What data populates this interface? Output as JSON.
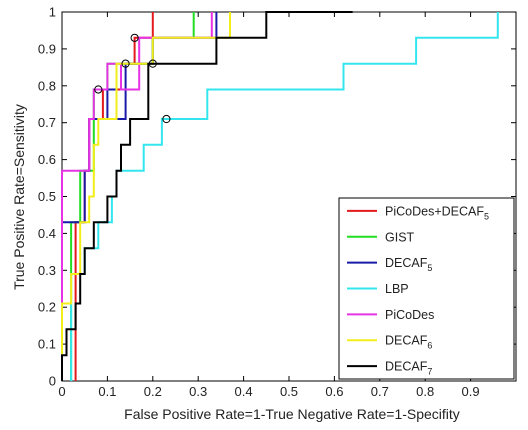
{
  "chart_data": {
    "type": "line",
    "title": "",
    "xlabel": "False Positive Rate=1-True Negative Rate=1-Specifity",
    "ylabel": "True Positive Rate=Sensitivity",
    "xlim": [
      0,
      1
    ],
    "ylim": [
      0,
      1
    ],
    "x_ticks": [
      "0",
      "0.1",
      "0.2",
      "0.3",
      "0.4",
      "0.5",
      "0.6",
      "0.7",
      "0.8",
      "0.9"
    ],
    "y_ticks": [
      "0",
      "0.1",
      "0.2",
      "0.3",
      "0.4",
      "0.5",
      "0.6",
      "0.7",
      "0.8",
      "0.9",
      "1"
    ],
    "x_tick_values": [
      0,
      0.1,
      0.2,
      0.3,
      0.4,
      0.5,
      0.6,
      0.7,
      0.8,
      0.9
    ],
    "y_tick_values": [
      0,
      0.1,
      0.2,
      0.3,
      0.4,
      0.5,
      0.6,
      0.7,
      0.8,
      0.9,
      1
    ],
    "grid": false,
    "legend_position": "bottom-right",
    "series": [
      {
        "name": "PiCoDes+DECAF",
        "subscript": "5",
        "color": "#e31a1c",
        "points": [
          [
            0.03,
            0
          ],
          [
            0.03,
            0.43
          ],
          [
            0.05,
            0.43
          ],
          [
            0.05,
            0.57
          ],
          [
            0.06,
            0.57
          ],
          [
            0.06,
            0.71
          ],
          [
            0.09,
            0.71
          ],
          [
            0.09,
            0.79
          ],
          [
            0.13,
            0.79
          ],
          [
            0.13,
            0.86
          ],
          [
            0.16,
            0.86
          ],
          [
            0.16,
            0.93
          ],
          [
            0.2,
            0.93
          ],
          [
            0.2,
            1
          ]
        ],
        "markers": [
          [
            0.16,
            0.93
          ]
        ]
      },
      {
        "name": "GIST",
        "subscript": "",
        "color": "#22dd22",
        "points": [
          [
            0.02,
            0
          ],
          [
            0.02,
            0.43
          ],
          [
            0.04,
            0.43
          ],
          [
            0.04,
            0.57
          ],
          [
            0.07,
            0.57
          ],
          [
            0.07,
            0.79
          ],
          [
            0.1,
            0.79
          ],
          [
            0.1,
            0.86
          ],
          [
            0.2,
            0.86
          ],
          [
            0.2,
            0.93
          ],
          [
            0.29,
            0.93
          ],
          [
            0.29,
            1
          ]
        ]
      },
      {
        "name": "DECAF",
        "subscript": "5",
        "color": "#1a1aa8",
        "points": [
          [
            0,
            0
          ],
          [
            0,
            0.43
          ],
          [
            0.05,
            0.43
          ],
          [
            0.05,
            0.57
          ],
          [
            0.06,
            0.57
          ],
          [
            0.06,
            0.71
          ],
          [
            0.1,
            0.71
          ],
          [
            0.1,
            0.79
          ],
          [
            0.12,
            0.79
          ],
          [
            0.12,
            0.71
          ],
          [
            0.14,
            0.71
          ],
          [
            0.14,
            0.86
          ],
          [
            0.2,
            0.86
          ],
          [
            0.2,
            0.93
          ],
          [
            0.34,
            0.93
          ],
          [
            0.34,
            1
          ]
        ],
        "markers": [
          [
            0.14,
            0.86
          ]
        ]
      },
      {
        "name": "LBP",
        "subscript": "",
        "color": "#33e6ee",
        "points": [
          [
            0.02,
            0
          ],
          [
            0.02,
            0.29
          ],
          [
            0.05,
            0.29
          ],
          [
            0.05,
            0.36
          ],
          [
            0.08,
            0.36
          ],
          [
            0.08,
            0.43
          ],
          [
            0.11,
            0.43
          ],
          [
            0.11,
            0.5
          ],
          [
            0.12,
            0.5
          ],
          [
            0.12,
            0.57
          ],
          [
            0.18,
            0.57
          ],
          [
            0.18,
            0.64
          ],
          [
            0.22,
            0.64
          ],
          [
            0.22,
            0.71
          ],
          [
            0.32,
            0.71
          ],
          [
            0.32,
            0.79
          ],
          [
            0.62,
            0.79
          ],
          [
            0.62,
            0.86
          ],
          [
            0.78,
            0.86
          ],
          [
            0.78,
            0.93
          ],
          [
            0.96,
            0.93
          ],
          [
            0.96,
            1
          ]
        ],
        "markers": [
          [
            0.23,
            0.71
          ]
        ]
      },
      {
        "name": "PiCoDes",
        "subscript": "",
        "color": "#e633e6",
        "points": [
          [
            0,
            0
          ],
          [
            0,
            0.57
          ],
          [
            0.06,
            0.57
          ],
          [
            0.06,
            0.71
          ],
          [
            0.07,
            0.71
          ],
          [
            0.07,
            0.79
          ],
          [
            0.1,
            0.79
          ],
          [
            0.1,
            0.86
          ],
          [
            0.13,
            0.86
          ],
          [
            0.13,
            0.79
          ],
          [
            0.17,
            0.79
          ],
          [
            0.17,
            0.93
          ],
          [
            0.33,
            0.93
          ],
          [
            0.33,
            1
          ]
        ],
        "markers": [
          [
            0.08,
            0.79
          ]
        ]
      },
      {
        "name": "DECAF",
        "subscript": "6",
        "color": "#f2ee1a",
        "points": [
          [
            0,
            0
          ],
          [
            0,
            0.21
          ],
          [
            0.02,
            0.21
          ],
          [
            0.02,
            0.29
          ],
          [
            0.04,
            0.29
          ],
          [
            0.04,
            0.43
          ],
          [
            0.06,
            0.43
          ],
          [
            0.06,
            0.5
          ],
          [
            0.07,
            0.5
          ],
          [
            0.07,
            0.64
          ],
          [
            0.08,
            0.64
          ],
          [
            0.08,
            0.71
          ],
          [
            0.12,
            0.71
          ],
          [
            0.12,
            0.86
          ],
          [
            0.2,
            0.86
          ],
          [
            0.2,
            0.93
          ],
          [
            0.37,
            0.93
          ],
          [
            0.37,
            1
          ]
        ]
      },
      {
        "name": "DECAF",
        "subscript": "7",
        "color": "#000000",
        "points": [
          [
            0,
            0
          ],
          [
            0,
            0.07
          ],
          [
            0.01,
            0.07
          ],
          [
            0.01,
            0.14
          ],
          [
            0.03,
            0.14
          ],
          [
            0.03,
            0.21
          ],
          [
            0.04,
            0.21
          ],
          [
            0.04,
            0.29
          ],
          [
            0.05,
            0.29
          ],
          [
            0.05,
            0.36
          ],
          [
            0.07,
            0.36
          ],
          [
            0.07,
            0.43
          ],
          [
            0.1,
            0.43
          ],
          [
            0.1,
            0.5
          ],
          [
            0.12,
            0.5
          ],
          [
            0.12,
            0.57
          ],
          [
            0.13,
            0.57
          ],
          [
            0.13,
            0.64
          ],
          [
            0.15,
            0.64
          ],
          [
            0.15,
            0.71
          ],
          [
            0.19,
            0.71
          ],
          [
            0.19,
            0.86
          ],
          [
            0.34,
            0.86
          ],
          [
            0.34,
            0.93
          ],
          [
            0.45,
            0.93
          ],
          [
            0.45,
            1
          ],
          [
            0.64,
            1
          ]
        ],
        "markers": [
          [
            0.2,
            0.86
          ]
        ]
      }
    ]
  }
}
